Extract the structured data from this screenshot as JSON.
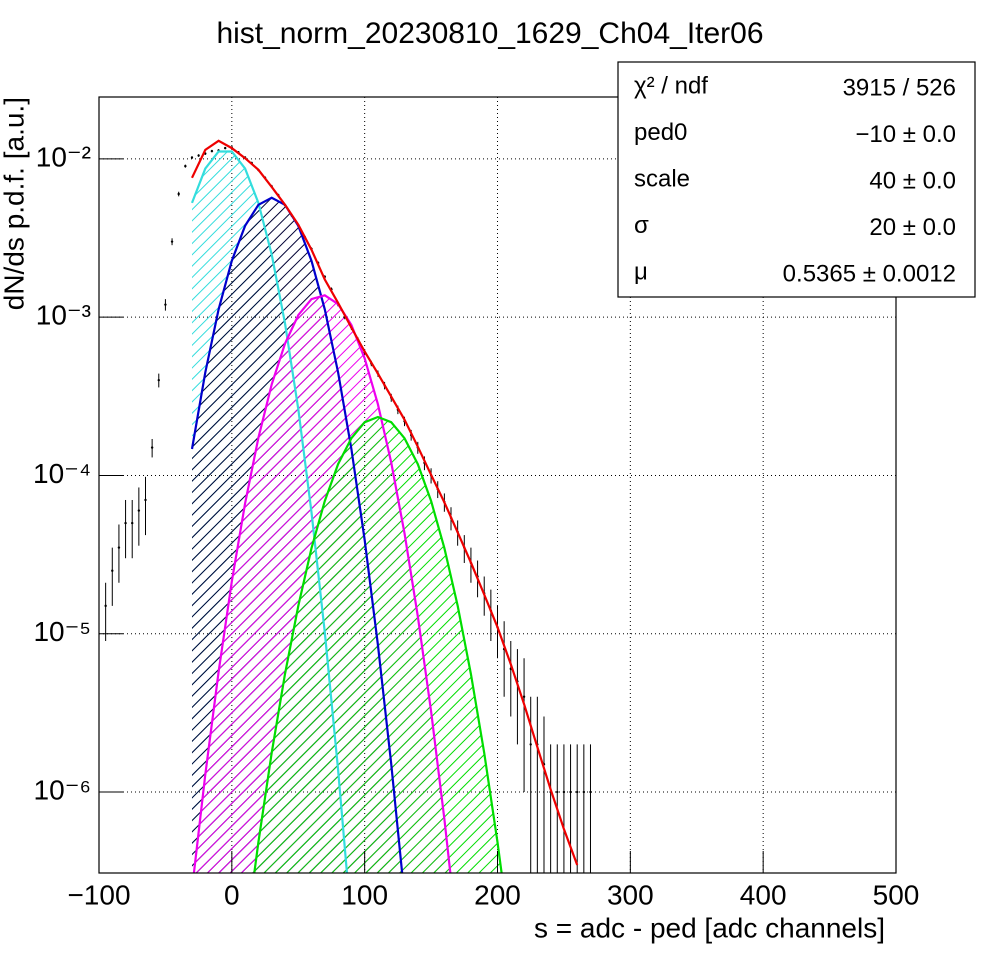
{
  "chart_data": {
    "type": "line",
    "title": "hist_norm_20230810_1629_Ch04_Iter06",
    "x_label": "s = adc - ped [adc channels]",
    "y_label": "dN/ds p.d.f. [a.u.]",
    "xlim": [
      -100,
      500
    ],
    "ylim": [
      3.08e-07,
      0.0246
    ],
    "log_y": true,
    "grid": true,
    "xticks": [
      {
        "value": -100,
        "label": "−100"
      },
      0,
      100,
      200,
      300,
      400,
      500
    ],
    "yticks": [
      {
        "value": 1e-06,
        "label": "10⁻⁶"
      },
      {
        "value": 1e-05,
        "label": "10⁻⁵"
      },
      {
        "value": 0.0001,
        "label": "10⁻⁴"
      },
      {
        "value": 0.001,
        "label": "10⁻³"
      },
      {
        "value": 0.01,
        "label": "10⁻²"
      }
    ],
    "points": {
      "color": "#000000",
      "x": [
        -95,
        -90,
        -85,
        -80,
        -75,
        -70,
        -65,
        -60,
        -55,
        -50,
        -45,
        -40,
        -35,
        -30,
        -25,
        -20,
        -15,
        -10,
        -5,
        0,
        5,
        10,
        15,
        20,
        25,
        30,
        35,
        40,
        45,
        50,
        55,
        60,
        65,
        70,
        75,
        80,
        85,
        90,
        95,
        100,
        105,
        110,
        115,
        120,
        125,
        130,
        135,
        140,
        145,
        150,
        155,
        160,
        165,
        170,
        175,
        180,
        185,
        190,
        195,
        200,
        205,
        210,
        215,
        220,
        225,
        230,
        235,
        240,
        245,
        250,
        255,
        260,
        265,
        270
      ],
      "values": [
        1.5e-05,
        2.5e-05,
        3.5e-05,
        5e-05,
        5e-05,
        6e-05,
        7e-05,
        0.00015,
        0.0004,
        0.0012,
        0.003,
        0.006,
        0.009,
        0.0102,
        0.0105,
        0.0108,
        0.0112,
        0.0113,
        0.0117,
        0.0118,
        0.011,
        0.0102,
        0.0094,
        0.0085,
        0.0076,
        0.0067,
        0.0059,
        0.0051,
        0.0044,
        0.0038,
        0.0032,
        0.0027,
        0.0022,
        0.0018,
        0.0015,
        0.0012,
        0.001,
        0.00086,
        0.00072,
        0.0006,
        0.00051,
        0.00044,
        0.00037,
        0.00031,
        0.00026,
        0.00022,
        0.00018,
        0.00015,
        0.00012,
        0.0001,
        8.2e-05,
        6.8e-05,
        5.4e-05,
        4.4e-05,
        3.5e-05,
        2.8e-05,
        2.3e-05,
        1.8e-05,
        1.4e-05,
        1.1e-05,
        8e-06,
        6e-06,
        5e-06,
        4e-06,
        2e-06,
        2e-06,
        1.5e-06,
        1e-06,
        1e-06,
        1e-06,
        1e-06,
        1e-06,
        1e-06,
        1e-06
      ],
      "errors": [
        6e-06,
        1e-05,
        1.4e-05,
        2e-05,
        2e-05,
        2.4e-05,
        2.8e-05,
        2e-05,
        4e-05,
        0.0001,
        0.00015,
        0.0002,
        0.0002,
        0.0002,
        0.0002,
        0.0002,
        0.0002,
        0.0002,
        0.0002,
        0.0002,
        0.0002,
        0.0002,
        0.0002,
        0.00015,
        0.00015,
        0.00015,
        0.00012,
        0.0001,
        0.0001,
        8e-05,
        7e-05,
        6e-05,
        5e-05,
        4e-05,
        4e-05,
        3e-05,
        3e-05,
        3e-05,
        2.5e-05,
        2.5e-05,
        2e-05,
        2e-05,
        2e-05,
        1.8e-05,
        1.6e-05,
        1.5e-05,
        1.4e-05,
        1.3e-05,
        1.2e-05,
        1.1e-05,
        1e-05,
        9e-06,
        9e-06,
        8e-06,
        7e-06,
        7e-06,
        6e-06,
        5e-06,
        5e-06,
        4e-06,
        4e-06,
        3e-06,
        3e-06,
        3e-06,
        2e-06,
        2e-06,
        1.5e-06,
        1e-06,
        1e-06,
        1e-06,
        1e-06,
        1e-06,
        1e-06,
        1e-06
      ]
    },
    "series": [
      {
        "color": "#33dddd",
        "fill": "hatch",
        "x": [
          -30,
          -20,
          -10,
          0,
          10,
          20,
          30,
          40,
          50,
          60,
          70,
          80,
          90
        ],
        "values": [
          0.00527,
          0.00868,
          0.01114,
          0.01114,
          0.00868,
          0.00527,
          0.00249,
          0.000915,
          0.000262,
          5.85e-05,
          1.02e-05,
          1.38e-06,
          1.45e-07
        ]
      },
      {
        "color": "#0000cc",
        "fill": "hatch",
        "x": [
          -30,
          -20,
          -10,
          0,
          10,
          20,
          30,
          40,
          50,
          60,
          70,
          80,
          90,
          100,
          110,
          120,
          130
        ],
        "values": [
          0.000147,
          0.000448,
          0.00112,
          0.00227,
          0.00378,
          0.00513,
          0.00568,
          0.00513,
          0.00378,
          0.00227,
          0.00112,
          0.000448,
          0.000147,
          3.9e-05,
          8.52e-06,
          1.51e-06,
          2.19e-07
        ]
      },
      {
        "color": "#ee00ee",
        "fill": "hatch",
        "x": [
          -30,
          -20,
          -10,
          0,
          10,
          20,
          30,
          40,
          50,
          60,
          70,
          80,
          90,
          100,
          110,
          120,
          130,
          140,
          150,
          160,
          170
        ],
        "values": [
          2.42e-07,
          1.29e-06,
          5.75e-06,
          2.14e-05,
          6.67e-05,
          0.000173,
          0.000376,
          0.000681,
          0.00103,
          0.0013,
          0.001375,
          0.00121,
          0.000892,
          0.000548,
          0.000282,
          0.000121,
          4.32e-05,
          1.29e-05,
          3.23e-06,
          6.73e-07,
          1.17e-07
        ]
      },
      {
        "color": "#00dd00",
        "fill": "hatch",
        "x": [
          10,
          20,
          30,
          40,
          50,
          60,
          70,
          80,
          90,
          100,
          110,
          120,
          130,
          140,
          150,
          160,
          170,
          180,
          190,
          200,
          210
        ],
        "values": [
          1.13e-07,
          4.82e-07,
          1.77e-06,
          5.57e-06,
          1.5e-05,
          3.47e-05,
          6.9e-05,
          0.000118,
          0.000172,
          0.000217,
          0.000234,
          0.000217,
          0.000172,
          0.000118,
          6.9e-05,
          3.47e-05,
          1.5e-05,
          5.57e-06,
          1.77e-06,
          4.82e-07,
          1.13e-07
        ]
      },
      {
        "color": "#ee0000",
        "x": [
          -30,
          -20,
          -10,
          0,
          10,
          20,
          30,
          40,
          50,
          60,
          70,
          80,
          90,
          100,
          110,
          120,
          130,
          140,
          150,
          160,
          170,
          180,
          190,
          200,
          210,
          220,
          230,
          240,
          250,
          260
        ],
        "values": [
          0.00759,
          0.0114,
          0.013,
          0.0117,
          0.0101,
          0.00853,
          0.00665,
          0.00513,
          0.00384,
          0.00267,
          0.00173,
          0.00123,
          0.000859,
          0.000606,
          0.00044,
          0.000315,
          0.000225,
          0.000152,
          0.000101,
          6.76e-05,
          4.37e-05,
          2.82e-05,
          1.77e-05,
          1.1e-05,
          6.42e-06,
          3.59e-06,
          1.92e-06,
          1.04e-06,
          5.84e-07,
          3.46e-07
        ]
      }
    ],
    "stats": [
      {
        "label": "χ² / ndf",
        "value": "3915 / 526"
      },
      {
        "label": "ped0",
        "value": "−10 ± 0.0"
      },
      {
        "label": "scale",
        "value": "40 ± 0.0"
      },
      {
        "label": "σ",
        "value": "20 ± 0.0"
      },
      {
        "label": "μ",
        "value": "0.5365 ± 0.0012"
      }
    ]
  }
}
